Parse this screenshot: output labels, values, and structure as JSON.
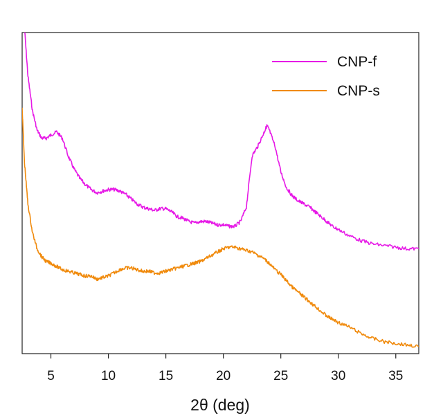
{
  "chart_data": {
    "type": "line",
    "title": "",
    "xlabel": "2θ (deg)",
    "ylabel": "",
    "xlim": [
      2.5,
      37
    ],
    "ylim": [
      0,
      1
    ],
    "x_ticks": [
      5,
      10,
      15,
      20,
      25,
      30,
      35
    ],
    "y_ticks": [],
    "grid": false,
    "legend_position": "top-right",
    "series": [
      {
        "name": "CNP-f",
        "color": "#e619e6",
        "x": [
          2.7,
          3.0,
          3.4,
          3.8,
          4.2,
          4.6,
          5.0,
          5.5,
          6.0,
          6.5,
          7.0,
          7.5,
          8.0,
          8.5,
          9.0,
          9.5,
          10.0,
          10.5,
          11.0,
          11.5,
          12.0,
          12.5,
          13.0,
          13.5,
          14.0,
          14.5,
          15.0,
          15.5,
          16.0,
          16.5,
          17.0,
          17.5,
          18.0,
          18.5,
          19.0,
          19.5,
          20.0,
          20.5,
          21.0,
          21.5,
          22.0,
          22.5,
          23.0,
          23.5,
          23.8,
          24.0,
          24.5,
          25.0,
          25.5,
          26.0,
          26.5,
          27.0,
          27.5,
          28.0,
          28.5,
          29.0,
          29.5,
          30.0,
          31.0,
          32.0,
          33.0,
          34.0,
          35.0,
          36.0,
          37.0
        ],
        "y": [
          1.0,
          0.85,
          0.74,
          0.68,
          0.655,
          0.655,
          0.665,
          0.675,
          0.655,
          0.6,
          0.56,
          0.53,
          0.51,
          0.495,
          0.485,
          0.49,
          0.495,
          0.495,
          0.49,
          0.48,
          0.465,
          0.45,
          0.44,
          0.435,
          0.43,
          0.435,
          0.435,
          0.425,
          0.41,
          0.405,
          0.395,
          0.39,
          0.395,
          0.395,
          0.39,
          0.385,
          0.385,
          0.38,
          0.38,
          0.395,
          0.44,
          0.6,
          0.63,
          0.67,
          0.695,
          0.68,
          0.63,
          0.55,
          0.5,
          0.475,
          0.46,
          0.45,
          0.44,
          0.425,
          0.41,
          0.395,
          0.38,
          0.37,
          0.35,
          0.335,
          0.325,
          0.32,
          0.315,
          0.31,
          0.31
        ]
      },
      {
        "name": "CNP-s",
        "color": "#f08a0c",
        "x": [
          2.5,
          2.7,
          3.0,
          3.4,
          3.8,
          4.2,
          4.6,
          5.0,
          5.5,
          6.0,
          6.5,
          7.0,
          7.5,
          8.0,
          8.5,
          9.0,
          9.5,
          10.0,
          10.5,
          11.0,
          11.5,
          12.0,
          12.5,
          13.0,
          13.5,
          14.0,
          14.5,
          15.0,
          15.5,
          16.0,
          16.5,
          17.0,
          17.5,
          18.0,
          18.5,
          19.0,
          19.5,
          20.0,
          20.5,
          21.0,
          21.5,
          22.0,
          22.5,
          23.0,
          23.5,
          24.0,
          24.5,
          25.0,
          25.5,
          26.0,
          26.5,
          27.0,
          27.5,
          28.0,
          28.5,
          29.0,
          29.5,
          30.0,
          31.0,
          32.0,
          33.0,
          34.0,
          35.0,
          36.0,
          37.0
        ],
        "y": [
          0.75,
          0.58,
          0.45,
          0.36,
          0.31,
          0.285,
          0.27,
          0.265,
          0.255,
          0.245,
          0.24,
          0.235,
          0.23,
          0.225,
          0.225,
          0.215,
          0.22,
          0.225,
          0.235,
          0.245,
          0.25,
          0.25,
          0.245,
          0.24,
          0.24,
          0.235,
          0.235,
          0.24,
          0.245,
          0.25,
          0.255,
          0.26,
          0.265,
          0.27,
          0.28,
          0.29,
          0.3,
          0.31,
          0.315,
          0.315,
          0.31,
          0.305,
          0.3,
          0.29,
          0.28,
          0.265,
          0.245,
          0.23,
          0.21,
          0.19,
          0.175,
          0.16,
          0.145,
          0.13,
          0.115,
          0.1,
          0.09,
          0.08,
          0.065,
          0.045,
          0.03,
          0.02,
          0.015,
          0.01,
          0.005
        ]
      }
    ]
  }
}
